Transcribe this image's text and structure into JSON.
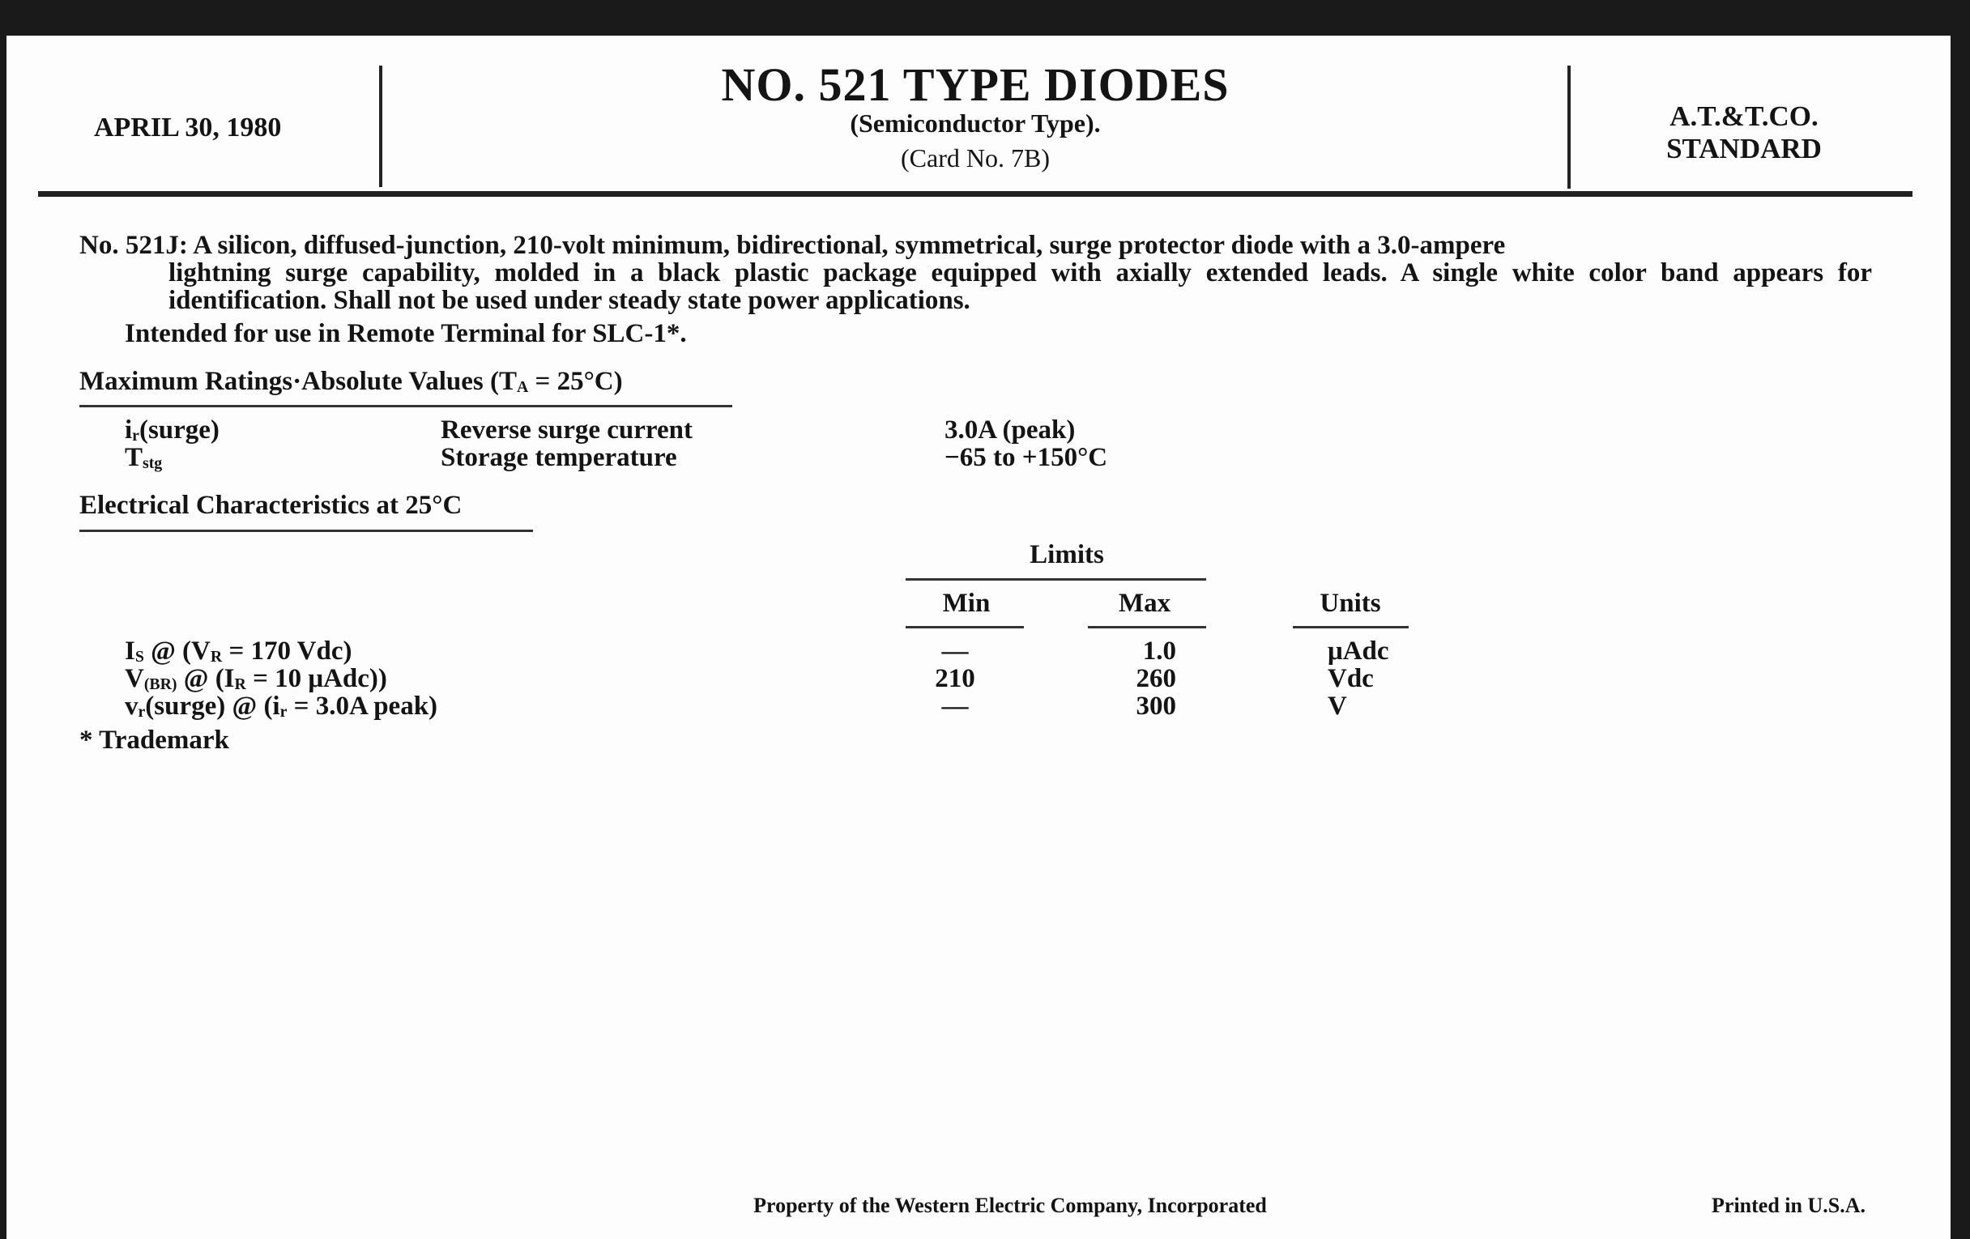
{
  "header": {
    "date": "APRIL 30, 1980",
    "title": "NO. 521 TYPE DIODES",
    "subtitle": "(Semiconductor Type).",
    "card": "(Card No. 7B)",
    "org_line1": "A.T.&T.CO.",
    "org_line2": "STANDARD"
  },
  "description": {
    "lead": "No. 521J: A silicon, diffused-junction, 210-volt minimum, bidirectional, symmetrical, surge protector diode with a 3.0-ampere",
    "continuation": "lightning surge capability, molded in a black plastic package equipped with axially extended leads. A single white color band appears for identification. Shall not be used under steady state power applications.",
    "intended": "Intended for use in Remote Terminal for SLC-1*."
  },
  "max_ratings": {
    "heading": [
      {
        "t": "Maximum Ratings·Absolute Values (T"
      },
      {
        "t": "A",
        "sub": true
      },
      {
        "t": " = 25°C)"
      }
    ],
    "rows": [
      {
        "symbol": [
          {
            "t": "i"
          },
          {
            "t": "r",
            "sub": true
          },
          {
            "t": "(surge)"
          }
        ],
        "description": "Reverse surge current",
        "value": "3.0A (peak)"
      },
      {
        "symbol": [
          {
            "t": "T"
          },
          {
            "t": "stg",
            "sub": true
          }
        ],
        "description": "Storage temperature",
        "value": "−65 to +150°C"
      }
    ]
  },
  "electrical": {
    "heading": "Electrical Characteristics at 25°C",
    "limits_label": "Limits",
    "columns": {
      "min": "Min",
      "max": "Max",
      "units": "Units"
    },
    "rows": [
      {
        "param": [
          {
            "t": "I"
          },
          {
            "t": "S",
            "sub": true
          },
          {
            "t": " @ (V"
          },
          {
            "t": "R",
            "sub": true
          },
          {
            "t": " = 170 Vdc)"
          }
        ],
        "min": "—",
        "max": "1.0",
        "units": "μAdc"
      },
      {
        "param": [
          {
            "t": "V"
          },
          {
            "t": "(BR)",
            "sub": true
          },
          {
            "t": " @ (I"
          },
          {
            "t": "R",
            "sub": true
          },
          {
            "t": " = 10 μAdc))"
          }
        ],
        "min": "210",
        "max": "260",
        "units": "Vdc"
      },
      {
        "param": [
          {
            "t": "v"
          },
          {
            "t": "r",
            "sub": true
          },
          {
            "t": "(surge) @ (i"
          },
          {
            "t": "r",
            "sub": true
          },
          {
            "t": " = 3.0A peak)"
          }
        ],
        "min": "—",
        "max": "300",
        "units": "V"
      }
    ],
    "footnote": "* Trademark"
  },
  "footer": {
    "property": "Property of the Western Electric Company, Incorporated",
    "printed": "Printed in U.S.A."
  }
}
